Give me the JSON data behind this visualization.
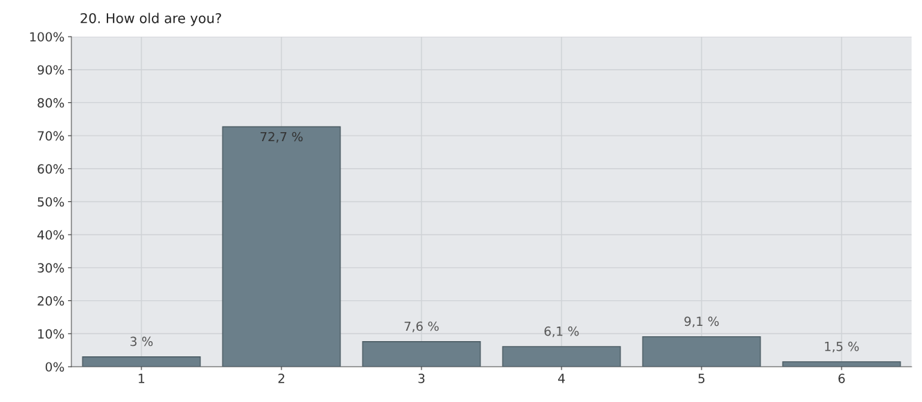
{
  "chart_data": {
    "type": "bar",
    "title": "20. How old are you?",
    "categories": [
      "1",
      "2",
      "3",
      "4",
      "5",
      "6"
    ],
    "values": [
      3,
      72.7,
      7.6,
      6.1,
      9.1,
      1.5
    ],
    "value_labels": [
      "3 %",
      "72,7 %",
      "7,6 %",
      "6,1 %",
      "9,1 %",
      "1,5 %"
    ],
    "color": "#6b7f8a",
    "ylim": [
      0,
      100
    ],
    "yticks": [
      {
        "value": 0,
        "label": "0%"
      },
      {
        "value": 10,
        "label": "10%"
      },
      {
        "value": 20,
        "label": "20%"
      },
      {
        "value": 30,
        "label": "30%"
      },
      {
        "value": 40,
        "label": "40%"
      },
      {
        "value": 50,
        "label": "50%"
      },
      {
        "value": 60,
        "label": "60%"
      },
      {
        "value": 70,
        "label": "70%"
      },
      {
        "value": 80,
        "label": "80%"
      },
      {
        "value": 90,
        "label": "90%"
      },
      {
        "value": 100,
        "label": "100%"
      }
    ],
    "grid": true,
    "legend": false
  }
}
